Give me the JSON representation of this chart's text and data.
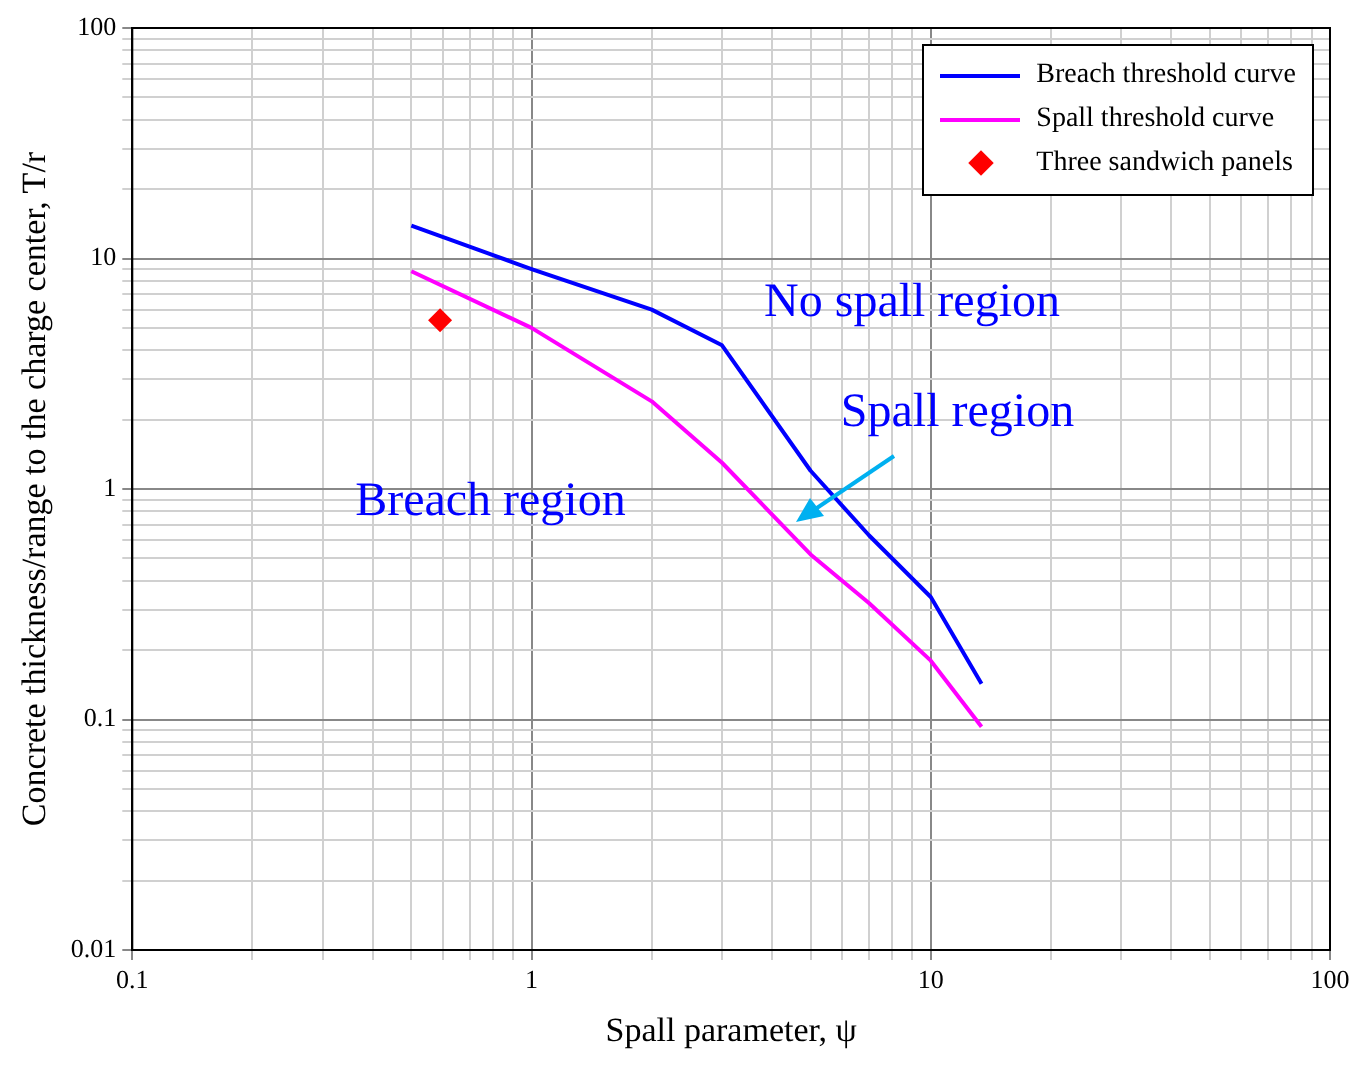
{
  "chart_data": {
    "type": "line",
    "xlabel": "Spall parameter, ψ",
    "ylabel": "Concrete thickness/range to the charge center, T/r",
    "log": "xy",
    "grid": true,
    "legend": "top right",
    "xlim": [
      0.1,
      100
    ],
    "xticks": [
      0.1,
      1,
      10,
      100
    ],
    "ylim": [
      0.01,
      100
    ],
    "yticks": [
      0.01,
      0.1,
      1,
      10,
      100
    ],
    "series": [
      {
        "name": "Breach threshold curve",
        "color": "#0000ff",
        "marker": "none",
        "x": [
          0.5,
          1,
          2,
          3,
          5,
          7,
          10,
          13.4
        ],
        "values": [
          13.9,
          9.0,
          6.0,
          4.2,
          1.2,
          0.63,
          0.34,
          0.143
        ]
      },
      {
        "name": "Spall threshold curve",
        "color": "#ff00ff",
        "marker": "none",
        "x": [
          0.5,
          1,
          2,
          3,
          5,
          7,
          10,
          13.4
        ],
        "values": [
          8.8,
          5.0,
          2.4,
          1.3,
          0.52,
          0.32,
          0.18,
          0.093
        ]
      },
      {
        "name": "Three sandwich panels",
        "type": "scatter",
        "color": "#ff0000",
        "marker": "diamond",
        "x": [
          0.59
        ],
        "values": [
          5.4
        ]
      }
    ],
    "annotations": [
      "No spall region",
      "Spall region",
      "Breach region"
    ]
  }
}
